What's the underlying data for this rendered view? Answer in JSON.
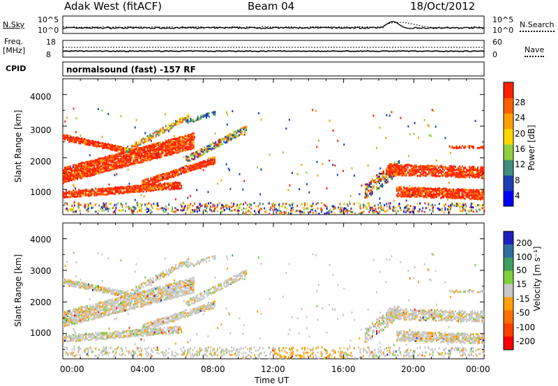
{
  "header": {
    "site": "Adak West (fitACF)",
    "beam": "Beam 04",
    "date": "18/Oct/2012"
  },
  "status_panels": {
    "nsky_label": "N.Sky",
    "nsearch_label": "N.Search",
    "nsky_ticks": [
      "10^5",
      "10^0"
    ],
    "nsearch_ticks": [
      "10^5",
      "10^0"
    ],
    "freq_label_top": "Freq.",
    "freq_label_unit": "[MHz]",
    "freq_ticks": [
      "18",
      "8"
    ],
    "nave_label": "Nave",
    "nave_ticks": [
      "60",
      "0"
    ],
    "cpid_label": "CPID",
    "cpid_text": "normalsound (fast) -157 RF"
  },
  "chart_data": [
    {
      "type": "heatmap",
      "name": "power",
      "ylabel": "Slant Range [km]",
      "yticks": [
        "1000",
        "2000",
        "3000",
        "4000"
      ],
      "xlabel": "Time UT",
      "xticks": [
        "00:00",
        "04:00",
        "08:00",
        "12:00",
        "16:00",
        "20:00",
        "00:00"
      ],
      "x_hours": [
        0,
        24
      ],
      "ylim": [
        200,
        4500
      ],
      "colorbar_label": "Power [dB]",
      "colorbar_ticks": [
        "4",
        "8",
        "12",
        "16",
        "20",
        "24",
        "28"
      ],
      "colors": [
        "#0000ff",
        "#1f3fb4",
        "#3f8f7f",
        "#8fcf3f",
        "#ffd700",
        "#ff9f00",
        "#ff5f00",
        "#ff1f00"
      ]
    },
    {
      "type": "heatmap",
      "name": "velocity",
      "ylabel": "Slant Range [km]",
      "yticks": [
        "1000",
        "2000",
        "3000",
        "4000"
      ],
      "xlabel": "Time UT",
      "xticks": [
        "00:00",
        "04:00",
        "08:00",
        "12:00",
        "16:00",
        "20:00",
        "00:00"
      ],
      "x_hours": [
        0,
        24
      ],
      "ylim": [
        200,
        4500
      ],
      "colorbar_label": "Velocity [m s⁻¹]",
      "colorbar_ticks": [
        "200",
        "100",
        "50",
        "15",
        "-15",
        "-50",
        "-100",
        "-200"
      ],
      "colors": [
        "#1f1fbf",
        "#2f6f9f",
        "#3f9f5f",
        "#7fcf3f",
        "#c8c8c8",
        "#ffa000",
        "#ff7000",
        "#ff3f00",
        "#ff0000"
      ]
    }
  ]
}
